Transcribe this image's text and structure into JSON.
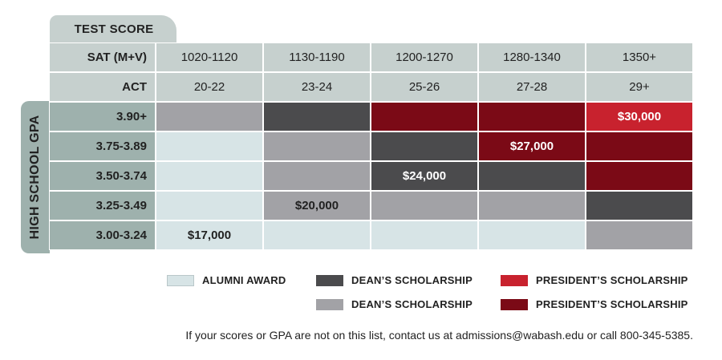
{
  "chart_data": {
    "type": "table",
    "tab_label": "TEST SCORE",
    "side_label": "HIGH SCHOOL GPA",
    "sat_label": "SAT (M+V)",
    "act_label": "ACT",
    "sat": [
      "1020-1120",
      "1130-1190",
      "1200-1270",
      "1280-1340",
      "1350+"
    ],
    "act": [
      "20-22",
      "23-24",
      "25-26",
      "27-28",
      "29+"
    ],
    "gpa": [
      "3.90+",
      "3.75-3.89",
      "3.50-3.74",
      "3.25-3.49",
      "3.00-3.24"
    ],
    "grid": [
      [
        "dean_light",
        "dean_dark",
        "president_dark",
        "president_dark",
        "president_bright"
      ],
      [
        "alumni",
        "dean_light",
        "dean_dark",
        "president_dark",
        "president_dark"
      ],
      [
        "alumni",
        "dean_light",
        "dean_dark",
        "dean_dark",
        "president_dark"
      ],
      [
        "alumni",
        "dean_light",
        "dean_light",
        "dean_light",
        "dean_dark"
      ],
      [
        "alumni",
        "alumni",
        "alumni",
        "alumni",
        "dean_light"
      ]
    ],
    "amounts": [
      {
        "row": 0,
        "col": 4,
        "text": "$30,000"
      },
      {
        "row": 1,
        "col": 3,
        "text": "$27,000"
      },
      {
        "row": 2,
        "col": 2,
        "text": "$24,000"
      },
      {
        "row": 3,
        "col": 1,
        "text": "$20,000"
      },
      {
        "row": 4,
        "col": 0,
        "text": "$17,000"
      }
    ],
    "colors": {
      "alumni": "#d7e4e6",
      "dean_light": "#a2a2a6",
      "dean_dark": "#4b4b4d",
      "president_dark": "#7b0a16",
      "president_bright": "#c8222e"
    },
    "legend": [
      {
        "key": "alumni",
        "label": "ALUMNI AWARD"
      },
      {
        "key": "dean_dark",
        "label": "DEAN’S SCHOLARSHIP"
      },
      {
        "key": "president_bright",
        "label": "PRESIDENT’S SCHOLARSHIP"
      },
      {
        "key": "dean_light",
        "label": "DEAN’S SCHOLARSHIP"
      },
      {
        "key": "president_dark",
        "label": "PRESIDENT’S SCHOLARSHIP"
      }
    ]
  },
  "footnote": "If your scores or GPA are not on this list, contact us at admissions@wabash.edu or call 800-345-5385."
}
